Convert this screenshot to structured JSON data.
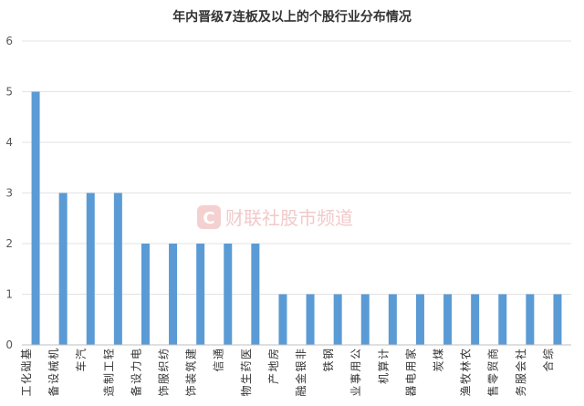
{
  "chart_data": {
    "type": "bar",
    "title": "年内晋级7连板及以上的个股行业分布情况",
    "xlabel": "",
    "ylabel": "",
    "ylim": [
      0,
      6
    ],
    "yticks": [
      0,
      1,
      2,
      3,
      4,
      5,
      6
    ],
    "grid": true,
    "bar_color": "#5b9bd5",
    "categories": [
      "基础化工",
      "机械设备",
      "汽车",
      "轻工制造",
      "电力设备",
      "纺织服饰",
      "建筑装饰",
      "通信",
      "医药生物",
      "房地产",
      "非银金融",
      "钢铁",
      "公用事业",
      "计算机",
      "家用电器",
      "煤炭",
      "农林牧渔",
      "商贸零售",
      "社会服务",
      "综合"
    ],
    "values": [
      5,
      3,
      3,
      3,
      2,
      2,
      2,
      2,
      2,
      1,
      1,
      1,
      1,
      1,
      1,
      1,
      1,
      1,
      1,
      1
    ]
  },
  "watermark": {
    "text": "财联社股市频道",
    "logo_letter": "C",
    "color": "#e8a0a0"
  }
}
